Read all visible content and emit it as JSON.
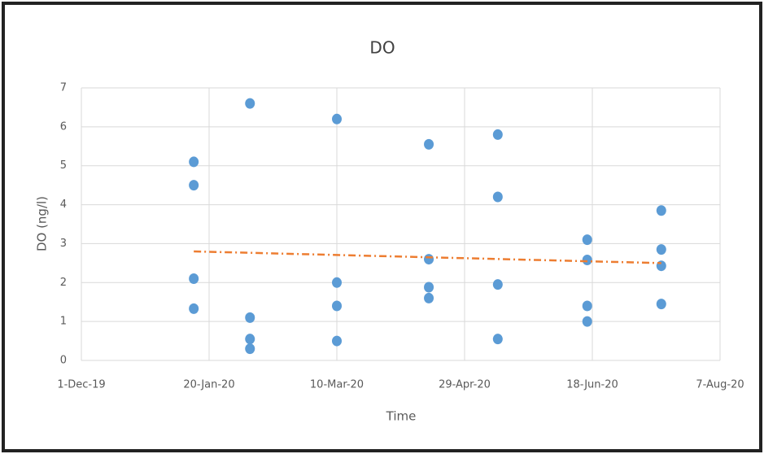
{
  "chart_data": {
    "type": "scatter",
    "title": "DO",
    "x_label": "Time",
    "y_label": "DO (ng/l)",
    "x": [
      "2020-01-14",
      "2020-01-14",
      "2020-01-14",
      "2020-01-14",
      "2020-02-05",
      "2020-02-05",
      "2020-02-05",
      "2020-02-05",
      "2020-03-10",
      "2020-03-10",
      "2020-03-10",
      "2020-03-10",
      "2020-04-15",
      "2020-04-15",
      "2020-04-15",
      "2020-04-15",
      "2020-05-12",
      "2020-05-12",
      "2020-05-12",
      "2020-05-12",
      "2020-06-16",
      "2020-06-16",
      "2020-06-16",
      "2020-06-16",
      "2020-07-15",
      "2020-07-15",
      "2020-07-15",
      "2020-07-15"
    ],
    "values": [
      5.1,
      4.5,
      2.1,
      1.33,
      6.6,
      1.1,
      0.55,
      0.3,
      6.2,
      2.0,
      1.4,
      0.5,
      5.55,
      2.6,
      1.88,
      1.6,
      5.8,
      4.2,
      1.95,
      0.55,
      3.1,
      2.58,
      1.4,
      1.0,
      3.85,
      2.85,
      2.43,
      1.45
    ],
    "color": "#5b9bd5",
    "trendline": {
      "x": [
        "2020-01-14",
        "2020-07-15"
      ],
      "values": [
        2.8,
        2.5
      ],
      "color": "#ed7d31"
    },
    "xlim": [
      "2019-12-01",
      "2020-08-07"
    ],
    "xticks": [
      {
        "value": "2019-12-01",
        "label": "1-Dec-19"
      },
      {
        "value": "2020-01-20",
        "label": "20-Jan-20"
      },
      {
        "value": "2020-03-10",
        "label": "10-Mar-20"
      },
      {
        "value": "2020-04-29",
        "label": "29-Apr-20"
      },
      {
        "value": "2020-06-18",
        "label": "18-Jun-20"
      },
      {
        "value": "2020-08-07",
        "label": "7-Aug-20"
      }
    ],
    "ylim": [
      0,
      7
    ],
    "yticks": [
      0,
      1,
      2,
      3,
      4,
      5,
      6,
      7
    ],
    "grid": true
  }
}
